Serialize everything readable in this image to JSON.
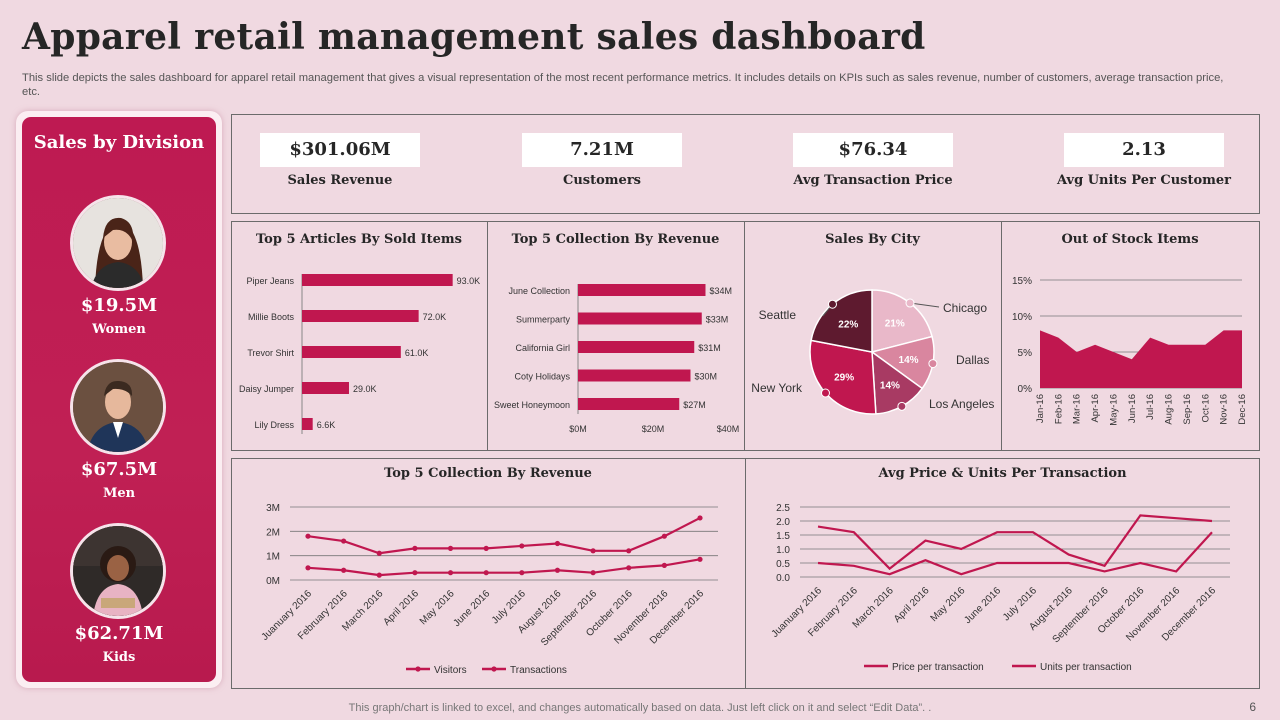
{
  "page": {
    "title": "Apparel retail management sales dashboard",
    "subtitle": "This slide depicts the sales dashboard for apparel retail management that gives a visual representation of the most recent performance metrics. It includes details on KPIs such as sales revenue, number of customers, average transaction price, etc.",
    "footer": "This graph/chart is linked to excel, and changes automatically based on data. Just left click on it and select “Edit Data”. .",
    "page_number": "6"
  },
  "sidebar": {
    "title": "Sales by Division",
    "divisions": [
      {
        "value": "$19.5M",
        "label": "Women"
      },
      {
        "value": "$67.5M",
        "label": "Men"
      },
      {
        "value": "$62.71M",
        "label": "Kids"
      }
    ]
  },
  "kpis": [
    {
      "value": "$301.06M",
      "label": "Sales Revenue"
    },
    {
      "value": "7.21M",
      "label": "Customers"
    },
    {
      "value": "$76.34",
      "label": "Avg Transaction Price"
    },
    {
      "value": "2.13",
      "label": "Avg Units Per Customer"
    }
  ],
  "colors": {
    "accent": "#c0174f",
    "background": "#f0d9e1",
    "dark_slice": "#5e1a2f",
    "light_slice": "#e9b8c9",
    "mid_slice": "#d9869f"
  },
  "chart_data": [
    {
      "type": "bar",
      "title": "Top 5 Articles By Sold Items",
      "orientation": "horizontal",
      "categories": [
        "Piper Jeans",
        "Millie Boots",
        "Trevor Shirt",
        "Daisy Jumper",
        "Lily Dress"
      ],
      "values": [
        93000,
        72000,
        61000,
        29000,
        6600
      ],
      "data_labels": [
        "93.0K",
        "72.0K",
        "61.0K",
        "29.0K",
        "6.6K"
      ],
      "xlim": [
        0,
        100000
      ]
    },
    {
      "type": "bar",
      "title": "Top 5 Collection By Revenue",
      "orientation": "horizontal",
      "categories": [
        "June Collection",
        "Summerparty",
        "California Girl",
        "Coty Holidays",
        "Sweet Honeymoon"
      ],
      "values": [
        34,
        33,
        31,
        30,
        27
      ],
      "data_labels": [
        "$34M",
        "$33M",
        "$31M",
        "$30M",
        "$27M"
      ],
      "xlim": [
        0,
        40
      ],
      "xticks": [
        "$0M",
        "$20M",
        "$40M"
      ]
    },
    {
      "type": "pie",
      "title": "Sales By City",
      "slices": [
        {
          "label": "Chicago",
          "value": 21,
          "pct_label": "21%"
        },
        {
          "label": "Dallas",
          "value": 14,
          "pct_label": "14%"
        },
        {
          "label": "Los Angeles",
          "value": 14,
          "pct_label": "14%"
        },
        {
          "label": "New York",
          "value": 29,
          "pct_label": "29%"
        },
        {
          "label": "Seattle",
          "value": 22,
          "pct_label": "22%"
        }
      ]
    },
    {
      "type": "area",
      "title": "Out of Stock Items",
      "x": [
        "Jan-16",
        "Feb-16",
        "Mar-16",
        "Apr-16",
        "May-16",
        "Jun-16",
        "Jul-16",
        "Aug-16",
        "Sep-16",
        "Oct-16",
        "Nov-16",
        "Dec-16"
      ],
      "values": [
        8,
        7,
        5,
        6,
        5,
        4,
        7,
        6,
        6,
        6,
        8,
        8
      ],
      "ylim": [
        0,
        15
      ],
      "yticks": [
        "0%",
        "5%",
        "10%",
        "15%"
      ]
    },
    {
      "type": "line",
      "title": "Top 5 Collection By Revenue",
      "x": [
        "Juanuary 2016",
        "February 2016",
        "March 2016",
        "April 2016",
        "May 2016",
        "June 2016",
        "July 2016",
        "August 2016",
        "September 2016",
        "October 2016",
        "November 2016",
        "December 2016"
      ],
      "series": [
        {
          "name": "Visitors",
          "values": [
            1.8,
            1.6,
            1.1,
            1.3,
            1.3,
            1.3,
            1.4,
            1.5,
            1.2,
            1.2,
            1.8,
            2.55
          ]
        },
        {
          "name": "Transactions",
          "values": [
            0.5,
            0.4,
            0.2,
            0.3,
            0.3,
            0.3,
            0.3,
            0.4,
            0.3,
            0.5,
            0.6,
            0.85
          ]
        }
      ],
      "ylim": [
        0,
        3
      ],
      "yticks": [
        "0M",
        "1M",
        "2M",
        "3M"
      ],
      "legend": "bottom"
    },
    {
      "type": "line",
      "title": "Avg Price & Units Per Transaction",
      "x": [
        "Juanuary 2016",
        "February 2016",
        "March 2016",
        "April 2016",
        "May 2016",
        "June 2016",
        "July 2016",
        "August 2016",
        "September 2016",
        "October 2016",
        "November 2016",
        "December 2016"
      ],
      "series": [
        {
          "name": "Price per transaction",
          "values": [
            1.8,
            1.6,
            0.3,
            1.3,
            1.0,
            1.6,
            1.6,
            0.8,
            0.4,
            2.2,
            2.1,
            2.0
          ]
        },
        {
          "name": "Units per transaction",
          "values": [
            0.5,
            0.4,
            0.1,
            0.6,
            0.1,
            0.5,
            0.5,
            0.5,
            0.2,
            0.5,
            0.2,
            1.6
          ]
        }
      ],
      "ylim": [
        0,
        2.5
      ],
      "yticks": [
        "0.0",
        "0.5",
        "1.0",
        "1.5",
        "2.0",
        "2.5"
      ],
      "legend": "bottom"
    }
  ]
}
